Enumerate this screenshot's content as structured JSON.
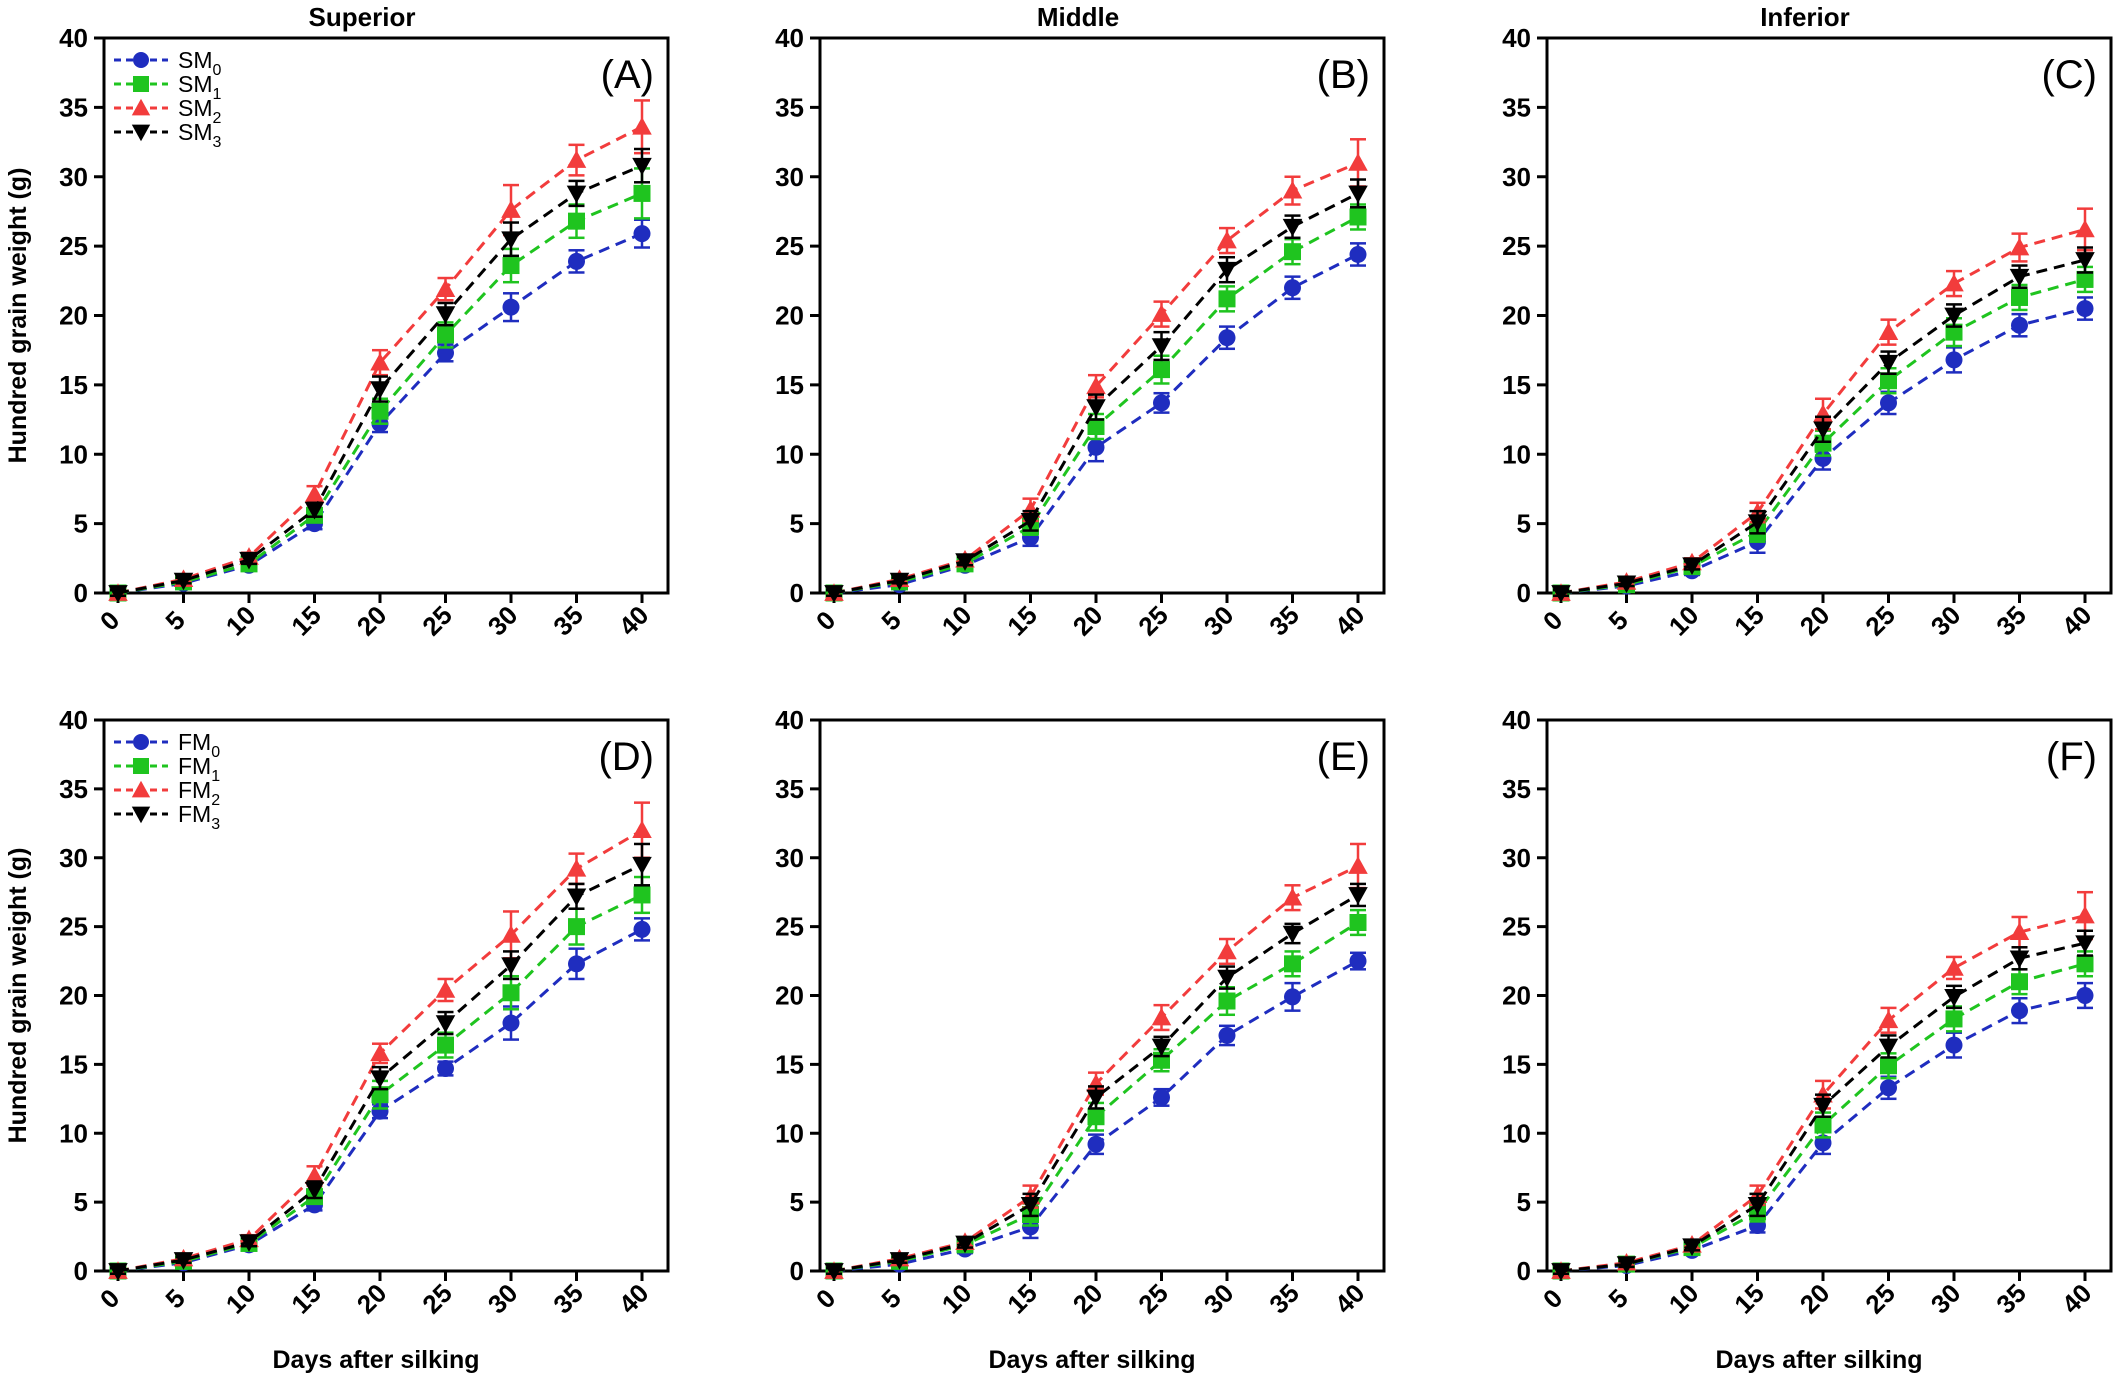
{
  "colors": {
    "M0": "#1f2dbf",
    "M1": "#1fc41f",
    "M2": "#f23c3c",
    "M3": "#000000"
  },
  "chart_data": [
    {
      "type": "line",
      "panel_label": "(A)",
      "title": "Superior",
      "xlabel": "",
      "ylabel": "Hundred grain weight (g)",
      "x": [
        0,
        5,
        10,
        15,
        20,
        25,
        30,
        35,
        40
      ],
      "ylim": [
        0,
        40
      ],
      "yticks": [
        0,
        5,
        10,
        15,
        20,
        25,
        30,
        35,
        40
      ],
      "legend": "top-left",
      "series": [
        {
          "name": "SM0",
          "label_base": "SM",
          "label_sub": "0",
          "marker": "circle",
          "color": "#1f2dbf",
          "values": [
            0,
            0.7,
            2.0,
            5.0,
            12.2,
            17.3,
            20.6,
            23.9,
            25.9
          ],
          "errors": [
            0.2,
            0.2,
            0.3,
            0.4,
            0.6,
            0.6,
            1.0,
            0.8,
            1.0
          ]
        },
        {
          "name": "SM1",
          "label_base": "SM",
          "label_sub": "1",
          "marker": "square",
          "color": "#1fc41f",
          "values": [
            0,
            0.8,
            2.1,
            5.6,
            13.1,
            18.6,
            23.6,
            26.8,
            28.8
          ],
          "errors": [
            0.2,
            0.2,
            0.3,
            0.5,
            0.9,
            0.9,
            1.2,
            1.2,
            1.8
          ]
        },
        {
          "name": "SM2",
          "label_base": "SM",
          "label_sub": "2",
          "marker": "triangle-up",
          "color": "#f23c3c",
          "values": [
            0,
            1.0,
            2.6,
            7.1,
            16.6,
            21.9,
            27.6,
            31.2,
            33.6
          ],
          "errors": [
            0.2,
            0.2,
            0.3,
            0.6,
            0.9,
            0.8,
            1.8,
            1.1,
            1.9
          ]
        },
        {
          "name": "SM3",
          "label_base": "SM",
          "label_sub": "3",
          "marker": "triangle-down",
          "color": "#000000",
          "values": [
            0,
            0.9,
            2.4,
            6.0,
            14.7,
            20.1,
            25.5,
            28.8,
            30.8
          ],
          "errors": [
            0.2,
            0.2,
            0.3,
            0.5,
            0.9,
            0.8,
            1.2,
            0.9,
            1.2
          ]
        }
      ]
    },
    {
      "type": "line",
      "panel_label": "(B)",
      "title": "Middle",
      "xlabel": "",
      "ylabel": "",
      "x": [
        0,
        5,
        10,
        15,
        20,
        25,
        30,
        35,
        40
      ],
      "ylim": [
        0,
        40
      ],
      "yticks": [
        0,
        5,
        10,
        15,
        20,
        25,
        30,
        35,
        40
      ],
      "legend": "none",
      "series": [
        {
          "name": "SM0",
          "marker": "circle",
          "color": "#1f2dbf",
          "values": [
            0,
            0.6,
            2.0,
            4.0,
            10.5,
            13.7,
            18.4,
            22.0,
            24.4
          ],
          "errors": [
            0.2,
            0.2,
            0.3,
            0.6,
            1.0,
            0.7,
            0.8,
            0.8,
            0.8
          ]
        },
        {
          "name": "SM1",
          "marker": "square",
          "color": "#1fc41f",
          "values": [
            0,
            0.8,
            2.1,
            4.8,
            12.0,
            16.1,
            21.2,
            24.6,
            27.1
          ],
          "errors": [
            0.2,
            0.2,
            0.3,
            0.6,
            0.9,
            1.0,
            0.9,
            0.9,
            0.9
          ]
        },
        {
          "name": "SM2",
          "marker": "triangle-up",
          "color": "#f23c3c",
          "values": [
            0,
            1.0,
            2.4,
            6.0,
            14.9,
            20.1,
            25.4,
            29.0,
            31.0
          ],
          "errors": [
            0.2,
            0.2,
            0.3,
            0.8,
            0.8,
            0.9,
            0.9,
            1.0,
            1.7
          ]
        },
        {
          "name": "SM3",
          "marker": "triangle-down",
          "color": "#000000",
          "values": [
            0,
            0.9,
            2.3,
            5.2,
            13.4,
            17.8,
            23.3,
            26.4,
            28.8
          ],
          "errors": [
            0.2,
            0.2,
            0.3,
            0.7,
            0.9,
            1.0,
            0.9,
            0.8,
            1.0
          ]
        }
      ]
    },
    {
      "type": "line",
      "panel_label": "(C)",
      "title": "Inferior",
      "xlabel": "",
      "ylabel": "",
      "x": [
        0,
        5,
        10,
        15,
        20,
        25,
        30,
        35,
        40
      ],
      "ylim": [
        0,
        40
      ],
      "yticks": [
        0,
        5,
        10,
        15,
        20,
        25,
        30,
        35,
        40
      ],
      "legend": "none",
      "series": [
        {
          "name": "SM0",
          "marker": "circle",
          "color": "#1f2dbf",
          "values": [
            0,
            0.5,
            1.6,
            3.7,
            9.7,
            13.7,
            16.8,
            19.3,
            20.5
          ],
          "errors": [
            0.2,
            0.2,
            0.3,
            0.8,
            0.8,
            0.8,
            0.9,
            0.8,
            0.8
          ]
        },
        {
          "name": "SM1",
          "marker": "square",
          "color": "#1fc41f",
          "values": [
            0,
            0.6,
            1.9,
            4.4,
            10.8,
            15.3,
            18.8,
            21.3,
            22.6
          ],
          "errors": [
            0.2,
            0.2,
            0.3,
            0.7,
            0.9,
            0.9,
            1.0,
            0.9,
            0.9
          ]
        },
        {
          "name": "SM2",
          "marker": "triangle-up",
          "color": "#f23c3c",
          "values": [
            0,
            0.8,
            2.2,
            5.8,
            12.9,
            18.8,
            22.3,
            24.9,
            26.2
          ],
          "errors": [
            0.2,
            0.2,
            0.3,
            0.7,
            1.1,
            0.9,
            0.9,
            1.0,
            1.5
          ]
        },
        {
          "name": "SM3",
          "marker": "triangle-down",
          "color": "#000000",
          "values": [
            0,
            0.7,
            2.0,
            5.1,
            11.8,
            16.6,
            20.0,
            22.8,
            24.0
          ],
          "errors": [
            0.2,
            0.2,
            0.3,
            0.8,
            0.9,
            0.8,
            0.8,
            0.8,
            0.9
          ]
        }
      ]
    },
    {
      "type": "line",
      "panel_label": "(D)",
      "title": "",
      "xlabel": "Days after silking",
      "ylabel": "Hundred grain weight (g)",
      "x": [
        0,
        5,
        10,
        15,
        20,
        25,
        30,
        35,
        40
      ],
      "ylim": [
        0,
        40
      ],
      "yticks": [
        0,
        5,
        10,
        15,
        20,
        25,
        30,
        35,
        40
      ],
      "legend": "top-left",
      "series": [
        {
          "name": "FM0",
          "label_base": "FM",
          "label_sub": "0",
          "marker": "circle",
          "color": "#1f2dbf",
          "values": [
            0,
            0.6,
            1.9,
            4.8,
            11.6,
            14.7,
            18.0,
            22.3,
            24.8
          ],
          "errors": [
            0.2,
            0.2,
            0.3,
            0.4,
            0.5,
            0.5,
            1.2,
            1.1,
            0.8
          ]
        },
        {
          "name": "FM1",
          "label_base": "FM",
          "label_sub": "1",
          "marker": "square",
          "color": "#1fc41f",
          "values": [
            0,
            0.7,
            2.0,
            5.4,
            12.8,
            16.4,
            20.2,
            25.0,
            27.3
          ],
          "errors": [
            0.2,
            0.2,
            0.3,
            0.5,
            1.0,
            0.9,
            1.2,
            1.3,
            1.3
          ]
        },
        {
          "name": "FM2",
          "label_base": "FM",
          "label_sub": "2",
          "marker": "triangle-up",
          "color": "#f23c3c",
          "values": [
            0,
            0.9,
            2.3,
            6.9,
            15.8,
            20.4,
            24.4,
            29.2,
            32.0
          ],
          "errors": [
            0.2,
            0.2,
            0.3,
            0.7,
            0.7,
            0.8,
            1.7,
            1.1,
            2.0
          ]
        },
        {
          "name": "FM3",
          "label_base": "FM",
          "label_sub": "3",
          "marker": "triangle-down",
          "color": "#000000",
          "values": [
            0,
            0.8,
            2.1,
            5.9,
            14.0,
            18.0,
            22.2,
            27.2,
            29.5
          ],
          "errors": [
            0.2,
            0.2,
            0.3,
            0.6,
            0.8,
            0.8,
            1.0,
            0.9,
            1.5
          ]
        }
      ]
    },
    {
      "type": "line",
      "panel_label": "(E)",
      "title": "",
      "xlabel": "Days after silking",
      "ylabel": "",
      "x": [
        0,
        5,
        10,
        15,
        20,
        25,
        30,
        35,
        40
      ],
      "ylim": [
        0,
        40
      ],
      "yticks": [
        0,
        5,
        10,
        15,
        20,
        25,
        30,
        35,
        40
      ],
      "legend": "none",
      "series": [
        {
          "name": "FM0",
          "marker": "circle",
          "color": "#1f2dbf",
          "values": [
            0,
            0.5,
            1.6,
            3.2,
            9.2,
            12.6,
            17.1,
            19.9,
            22.5
          ],
          "errors": [
            0.2,
            0.2,
            0.3,
            0.8,
            0.7,
            0.6,
            0.7,
            1.0,
            0.6
          ]
        },
        {
          "name": "FM1",
          "marker": "square",
          "color": "#1fc41f",
          "values": [
            0,
            0.7,
            1.9,
            4.1,
            11.2,
            15.3,
            19.6,
            22.3,
            25.3
          ],
          "errors": [
            0.2,
            0.2,
            0.3,
            0.8,
            1.0,
            0.8,
            1.0,
            0.9,
            0.9
          ]
        },
        {
          "name": "FM2",
          "marker": "triangle-up",
          "color": "#f23c3c",
          "values": [
            0,
            0.9,
            2.1,
            5.4,
            13.6,
            18.4,
            23.2,
            27.1,
            29.4
          ],
          "errors": [
            0.2,
            0.2,
            0.3,
            0.8,
            0.8,
            0.9,
            0.9,
            0.9,
            1.6
          ]
        },
        {
          "name": "FM3",
          "marker": "triangle-down",
          "color": "#000000",
          "values": [
            0,
            0.8,
            2.0,
            4.8,
            12.6,
            16.3,
            21.3,
            24.5,
            27.3
          ],
          "errors": [
            0.2,
            0.2,
            0.3,
            0.8,
            0.8,
            0.7,
            0.8,
            0.7,
            0.8
          ]
        }
      ]
    },
    {
      "type": "line",
      "panel_label": "(F)",
      "title": "",
      "xlabel": "Days after silking",
      "ylabel": "",
      "x": [
        0,
        5,
        10,
        15,
        20,
        25,
        30,
        35,
        40
      ],
      "ylim": [
        0,
        40
      ],
      "yticks": [
        0,
        5,
        10,
        15,
        20,
        25,
        30,
        35,
        40
      ],
      "legend": "none",
      "series": [
        {
          "name": "FM0",
          "marker": "circle",
          "color": "#1f2dbf",
          "values": [
            0,
            0.4,
            1.5,
            3.3,
            9.3,
            13.3,
            16.4,
            18.9,
            20.0
          ],
          "errors": [
            0.2,
            0.2,
            0.3,
            0.5,
            0.8,
            0.8,
            0.9,
            0.9,
            0.9
          ]
        },
        {
          "name": "FM1",
          "marker": "square",
          "color": "#1fc41f",
          "values": [
            0,
            0.5,
            1.7,
            4.3,
            10.6,
            14.9,
            18.3,
            21.0,
            22.3
          ],
          "errors": [
            0.2,
            0.2,
            0.3,
            0.7,
            0.9,
            0.9,
            0.9,
            0.9,
            0.9
          ]
        },
        {
          "name": "FM2",
          "marker": "triangle-up",
          "color": "#f23c3c",
          "values": [
            0,
            0.6,
            1.9,
            5.5,
            12.8,
            18.2,
            22.0,
            24.6,
            25.8
          ],
          "errors": [
            0.2,
            0.2,
            0.3,
            0.7,
            1.0,
            0.9,
            0.8,
            1.1,
            1.7
          ]
        },
        {
          "name": "FM3",
          "marker": "triangle-down",
          "color": "#000000",
          "values": [
            0,
            0.5,
            1.8,
            4.8,
            12.0,
            16.3,
            19.9,
            22.7,
            23.8
          ],
          "errors": [
            0.2,
            0.2,
            0.3,
            0.8,
            0.8,
            0.8,
            0.8,
            0.8,
            0.9
          ]
        }
      ]
    }
  ]
}
